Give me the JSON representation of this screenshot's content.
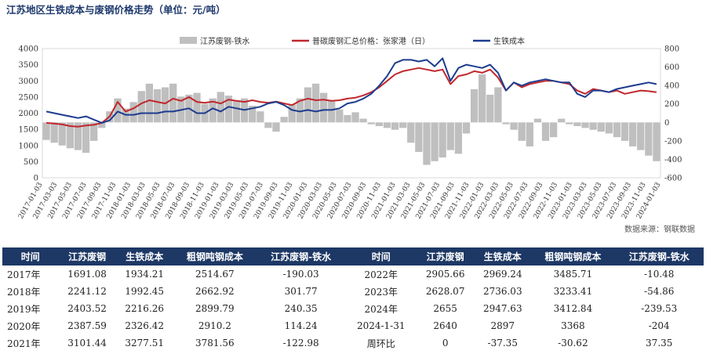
{
  "title": "江苏地区生铁成本与废钢价格走势（单位：元/吨）",
  "source": "数据来源：钢联数据",
  "colors": {
    "bar": "#bfbfbf",
    "scrap": "#c1272d",
    "pig": "#1d3c8f",
    "header_bg": "#1d3865",
    "pos": "#d2141b",
    "neg": "#1a9a2e"
  },
  "chart_data": {
    "type": "line",
    "legend_position": "top",
    "left_axis": {
      "min": 0,
      "max": 4000,
      "ticks": [
        "0",
        "500",
        "1000",
        "1500",
        "2000",
        "2500",
        "3000",
        "3500",
        "4000"
      ]
    },
    "right_axis": {
      "min": -600,
      "max": 800,
      "ticks": [
        "-600",
        "-400",
        "-200",
        "0",
        "200",
        "400",
        "600",
        "800"
      ]
    },
    "x_ticks": [
      "2017-01-03",
      "2017-03-03",
      "2017-05-03",
      "2017-07-03",
      "2017-09-03",
      "2017-11-03",
      "2018-01-03",
      "2018-03-03",
      "2018-05-03",
      "2018-07-03",
      "2018-09-03",
      "2018-11-03",
      "2019-01-03",
      "2019-03-03",
      "2019-05-03",
      "2019-07-03",
      "2019-09-03",
      "2019-11-03",
      "2020-01-03",
      "2020-03-03",
      "2020-05-03",
      "2020-07-03",
      "2020-09-03",
      "2020-11-03",
      "2021-01-03",
      "2021-03-03",
      "2021-05-03",
      "2021-07-03",
      "2021-09-03",
      "2021-11-03",
      "2022-01-03",
      "2022-03-03",
      "2022-05-03",
      "2022-07-03",
      "2022-09-03",
      "2022-11-03",
      "2023-01-03",
      "2023-03-03",
      "2023-05-03",
      "2023-07-03",
      "2023-09-03",
      "2023-11-03",
      "2024-01-03"
    ],
    "series": [
      {
        "name": "江苏废钢-铁水",
        "type": "bar",
        "axis": "right",
        "values": [
          -190,
          -220,
          -250,
          -280,
          -300,
          -330,
          -200,
          -60,
          120,
          260,
          150,
          220,
          340,
          420,
          360,
          380,
          420,
          280,
          300,
          320,
          200,
          260,
          330,
          290,
          240,
          260,
          180,
          120,
          -60,
          -100,
          60,
          200,
          260,
          380,
          420,
          320,
          240,
          140,
          80,
          110,
          40,
          -20,
          -40,
          -60,
          -80,
          -60,
          -220,
          -320,
          -460,
          -420,
          -380,
          -300,
          -340,
          -120,
          360,
          520,
          300,
          380,
          -20,
          -80,
          -200,
          -260,
          40,
          -200,
          -160,
          40,
          -20,
          -40,
          -60,
          -80,
          -100,
          -120,
          -160,
          -200,
          -260,
          -300,
          -360,
          -420
        ]
      },
      {
        "name": "普碳废钢汇总价格：张家港（日）",
        "type": "line",
        "axis": "left",
        "values": [
          1700,
          1680,
          1650,
          1600,
          1580,
          1620,
          1640,
          1700,
          1900,
          2350,
          2050,
          2150,
          2300,
          2400,
          2350,
          2300,
          2450,
          2380,
          2500,
          2350,
          2320,
          2360,
          2300,
          2420,
          2380,
          2350,
          2400,
          2350,
          2320,
          2360,
          2300,
          2250,
          2380,
          2450,
          2400,
          2420,
          2380,
          2400,
          2450,
          2480,
          2550,
          2650,
          2800,
          3000,
          3200,
          3300,
          3350,
          3400,
          3350,
          3300,
          3350,
          2900,
          3150,
          3200,
          3300,
          3250,
          3350,
          3100,
          2700,
          2950,
          2800,
          2900,
          2950,
          3000,
          3000,
          2950,
          2900,
          2700,
          2600,
          2750,
          2700,
          2650,
          2700,
          2600,
          2650,
          2700,
          2680,
          2650
        ]
      },
      {
        "name": "生铁成本",
        "type": "line",
        "axis": "left",
        "values": [
          2050,
          2000,
          1950,
          1900,
          1850,
          1900,
          1800,
          1700,
          1780,
          2050,
          1950,
          1950,
          2000,
          2000,
          2000,
          2050,
          2050,
          2100,
          2150,
          2000,
          2000,
          2150,
          2050,
          2200,
          2150,
          2100,
          2150,
          2200,
          2300,
          2350,
          2250,
          2100,
          2050,
          2100,
          2050,
          2100,
          2100,
          2150,
          2300,
          2350,
          2450,
          2600,
          2850,
          3150,
          3550,
          3650,
          3650,
          3600,
          3650,
          3450,
          3700,
          3000,
          3400,
          3500,
          3450,
          3400,
          3500,
          3250,
          2700,
          2950,
          2850,
          2950,
          3000,
          3050,
          3000,
          2950,
          2950,
          2600,
          2500,
          2700,
          2700,
          2650,
          2750,
          2800,
          2850,
          2900,
          2950,
          2900
        ]
      }
    ]
  },
  "table": {
    "headers": [
      "时间",
      "江苏废钢",
      "生铁成本",
      "粗钢吨钢成本",
      "江苏废钢-铁水",
      "时间",
      "江苏废钢",
      "生铁成本",
      "粗钢吨钢成本",
      "江苏废钢-铁水"
    ],
    "rows": [
      [
        "2017年",
        "1691.08",
        "1934.21",
        "2514.67",
        "-190.03",
        "2022年",
        "2905.66",
        "2969.24",
        "3485.71",
        "-10.48"
      ],
      [
        "2018年",
        "2241.12",
        "1992.45",
        "2662.92",
        "301.77",
        "2023年",
        "2628.07",
        "2736.03",
        "3233.41",
        "-54.86"
      ],
      [
        "2019年",
        "2403.52",
        "2216.26",
        "2899.79",
        "240.35",
        "2024年",
        "2655",
        "2947.63",
        "3412.84",
        "-239.53"
      ],
      [
        "2020年",
        "2387.59",
        "2326.42",
        "2910.2",
        "114.24",
        "2024-1-31",
        "2640",
        "2897",
        "3368",
        "-204"
      ],
      [
        "2021年",
        "3101.44",
        "3277.51",
        "3781.56",
        "-122.98",
        "周环比",
        "0",
        "-37.35",
        "-30.62",
        "37.35"
      ]
    ]
  }
}
